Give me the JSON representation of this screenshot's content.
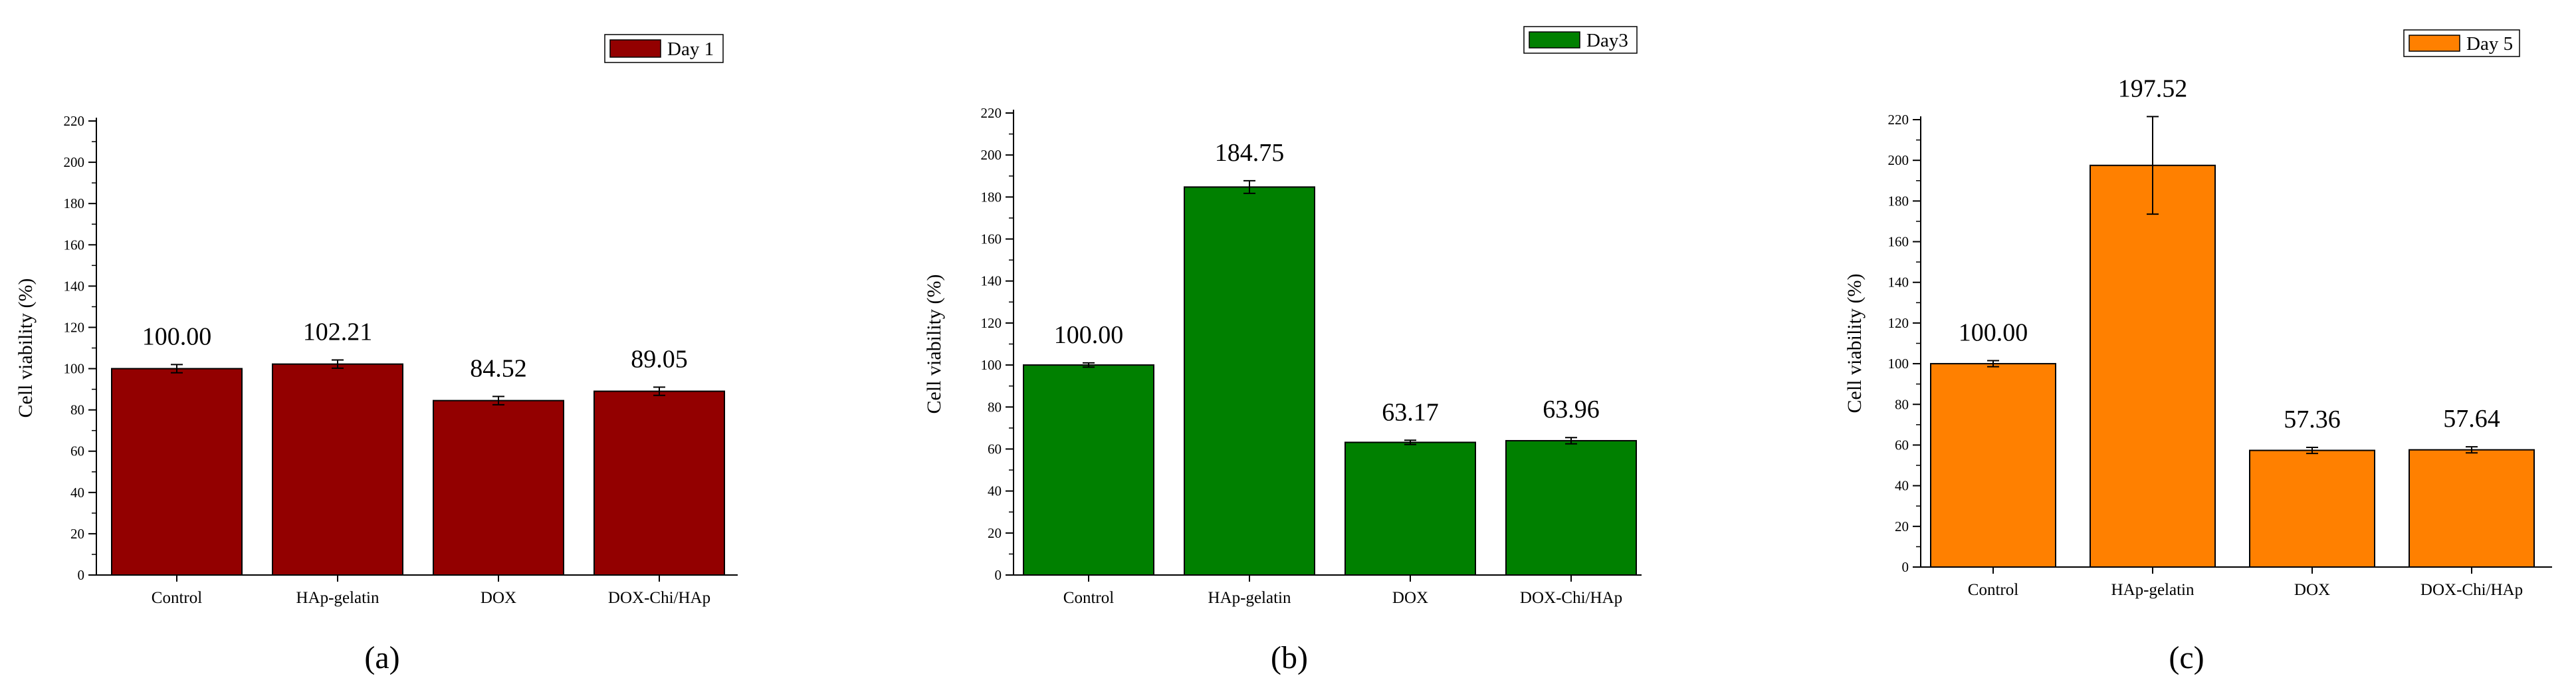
{
  "chart_data": [
    {
      "type": "bar",
      "panel_label": "(a)",
      "categories": [
        "Control",
        "HAp-gelatin",
        "DOX",
        "DOX-Chi/HAp"
      ],
      "series": [
        {
          "name": "Day 1",
          "color": "#930000",
          "values": [
            100.0,
            102.21,
            84.52,
            89.05
          ],
          "errors": [
            2,
            2,
            2,
            2
          ]
        }
      ],
      "data_labels": [
        "100.00",
        "102.21",
        "84.52",
        "89.05"
      ],
      "ylabel": "Cell viability (%)",
      "xlabel": "",
      "ylim": [
        0,
        220
      ],
      "yticks": [
        0,
        20,
        40,
        60,
        80,
        100,
        120,
        140,
        160,
        180,
        200,
        220
      ],
      "legend": "top-right",
      "grid": false
    },
    {
      "type": "bar",
      "panel_label": "(b)",
      "categories": [
        "Control",
        "HAp-gelatin",
        "DOX",
        "DOX-Chi/HAp"
      ],
      "series": [
        {
          "name": "Day3",
          "color": "#008000",
          "values": [
            100.0,
            184.75,
            63.17,
            63.96
          ],
          "errors": [
            1,
            3,
            1,
            1.5
          ]
        }
      ],
      "data_labels": [
        "100.00",
        "184.75",
        "63.17",
        "63.96"
      ],
      "ylabel": "Cell viability (%)",
      "xlabel": "",
      "ylim": [
        0,
        220
      ],
      "yticks": [
        0,
        20,
        40,
        60,
        80,
        100,
        120,
        140,
        160,
        180,
        200,
        220
      ],
      "legend": "top-right",
      "grid": false
    },
    {
      "type": "bar",
      "panel_label": "(c)",
      "categories": [
        "Control",
        "HAp-gelatin",
        "DOX",
        "DOX-Chi/HAp"
      ],
      "series": [
        {
          "name": "Day 5",
          "color": "#FF8000",
          "values": [
            100.0,
            197.52,
            57.36,
            57.64
          ],
          "errors": [
            1.5,
            24,
            1.5,
            1.5
          ]
        }
      ],
      "data_labels": [
        "100.00",
        "197.52",
        "57.36",
        "57.64"
      ],
      "ylabel": "Cell viability (%)",
      "xlabel": "",
      "ylim": [
        0,
        220
      ],
      "yticks": [
        0,
        20,
        40,
        60,
        80,
        100,
        120,
        140,
        160,
        180,
        200,
        220
      ],
      "legend": "top-right",
      "grid": false
    }
  ]
}
